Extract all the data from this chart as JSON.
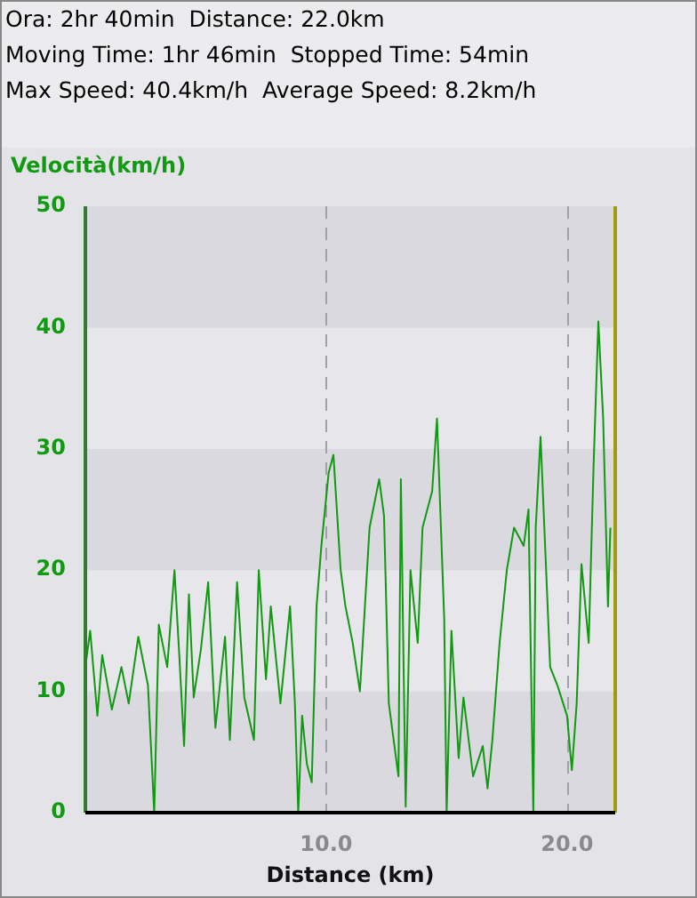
{
  "chart_data": {
    "type": "line",
    "title": "Ora: 2hr 40min  Distance: 22.0km",
    "subtitle": "Moving Time: 1hr 46min  Stopped Time: 54min",
    "annotations": [
      "Max Speed: 40.4km/h  Average Speed: 8.2km/h"
    ],
    "xlabel": "Distance (km)",
    "ylabel": "Velocità(km/h)",
    "xlim": [
      0,
      22
    ],
    "xticks": [
      {
        "value": 10,
        "label": "10.0"
      },
      {
        "value": 20,
        "label": "20.0"
      }
    ],
    "ylim": [
      0,
      50
    ],
    "yticks": [
      0,
      10,
      20,
      30,
      40,
      50
    ],
    "grid": true,
    "marker": "none",
    "line_style": "solid",
    "ref_lines": [
      {
        "axis": "x",
        "value": 22,
        "color": "#a09a10"
      }
    ],
    "series": [
      {
        "color": "#119911",
        "x": [
          0,
          0.2,
          0.5,
          0.7,
          1.1,
          1.5,
          1.8,
          2.2,
          2.6,
          2.86,
          3.05,
          3.4,
          3.7,
          3.9,
          4.1,
          4.3,
          4.5,
          4.8,
          5.1,
          5.4,
          5.8,
          6.0,
          6.3,
          6.6,
          7.0,
          7.2,
          7.5,
          7.7,
          8.1,
          8.5,
          8.7,
          8.84,
          9.0,
          9.2,
          9.4,
          9.6,
          9.8,
          10.1,
          10.3,
          10.6,
          10.8,
          11.1,
          11.4,
          11.8,
          12.2,
          12.4,
          12.6,
          12.8,
          13.0,
          13.1,
          13.3,
          13.5,
          13.8,
          14.0,
          14.4,
          14.6,
          14.9,
          15.0,
          15.2,
          15.5,
          15.7,
          16.1,
          16.5,
          16.7,
          16.9,
          17.2,
          17.5,
          17.8,
          18.2,
          18.4,
          18.6,
          18.7,
          18.9,
          19.3,
          19.6,
          20.0,
          20.2,
          20.4,
          20.6,
          20.9,
          21.1,
          21.3,
          21.5,
          21.7,
          21.8
        ],
        "values": [
          12,
          15,
          8,
          13,
          8.5,
          12,
          9,
          14.5,
          10.5,
          0,
          15.5,
          12,
          20,
          13,
          5.5,
          18,
          9.5,
          13.5,
          19,
          7,
          14.5,
          6,
          19,
          9.5,
          6,
          20,
          11,
          17,
          9,
          17,
          9,
          0,
          8,
          4,
          2.5,
          17,
          22,
          28,
          29.5,
          20,
          17,
          14,
          10,
          23.5,
          27.5,
          24.5,
          9,
          6,
          3,
          27.5,
          0.5,
          20,
          14,
          23.5,
          26.5,
          32.5,
          16,
          0,
          15,
          4.5,
          9.5,
          3,
          5.5,
          2,
          6,
          14,
          20,
          23.5,
          22,
          25,
          0,
          23.5,
          31,
          12,
          10.5,
          8,
          3.5,
          9,
          20.5,
          14,
          28.5,
          40.5,
          32.5,
          17,
          23.5
        ]
      }
    ]
  }
}
